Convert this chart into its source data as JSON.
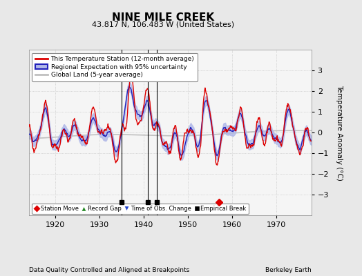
{
  "title": "NINE MILE CREEK",
  "subtitle": "43.817 N, 106.483 W (United States)",
  "ylabel": "Temperature Anomaly (°C)",
  "footer_left": "Data Quality Controlled and Aligned at Breakpoints",
  "footer_right": "Berkeley Earth",
  "xlim": [
    1914,
    1978
  ],
  "ylim": [
    -4,
    4
  ],
  "xticks": [
    1920,
    1930,
    1940,
    1950,
    1960,
    1970
  ],
  "yticks": [
    -3,
    -2,
    -1,
    0,
    1,
    2,
    3
  ],
  "background_color": "#e8e8e8",
  "plot_bg_color": "#f5f5f5",
  "station_color": "#dd0000",
  "regional_color": "#2222bb",
  "regional_fill_color": "#b0b8e8",
  "global_color": "#c0c0c0",
  "event_markers": {
    "empirical_breaks": [
      1935,
      1941,
      1943
    ],
    "station_move": [
      1957
    ],
    "record_gap": [],
    "time_obs_change": []
  }
}
